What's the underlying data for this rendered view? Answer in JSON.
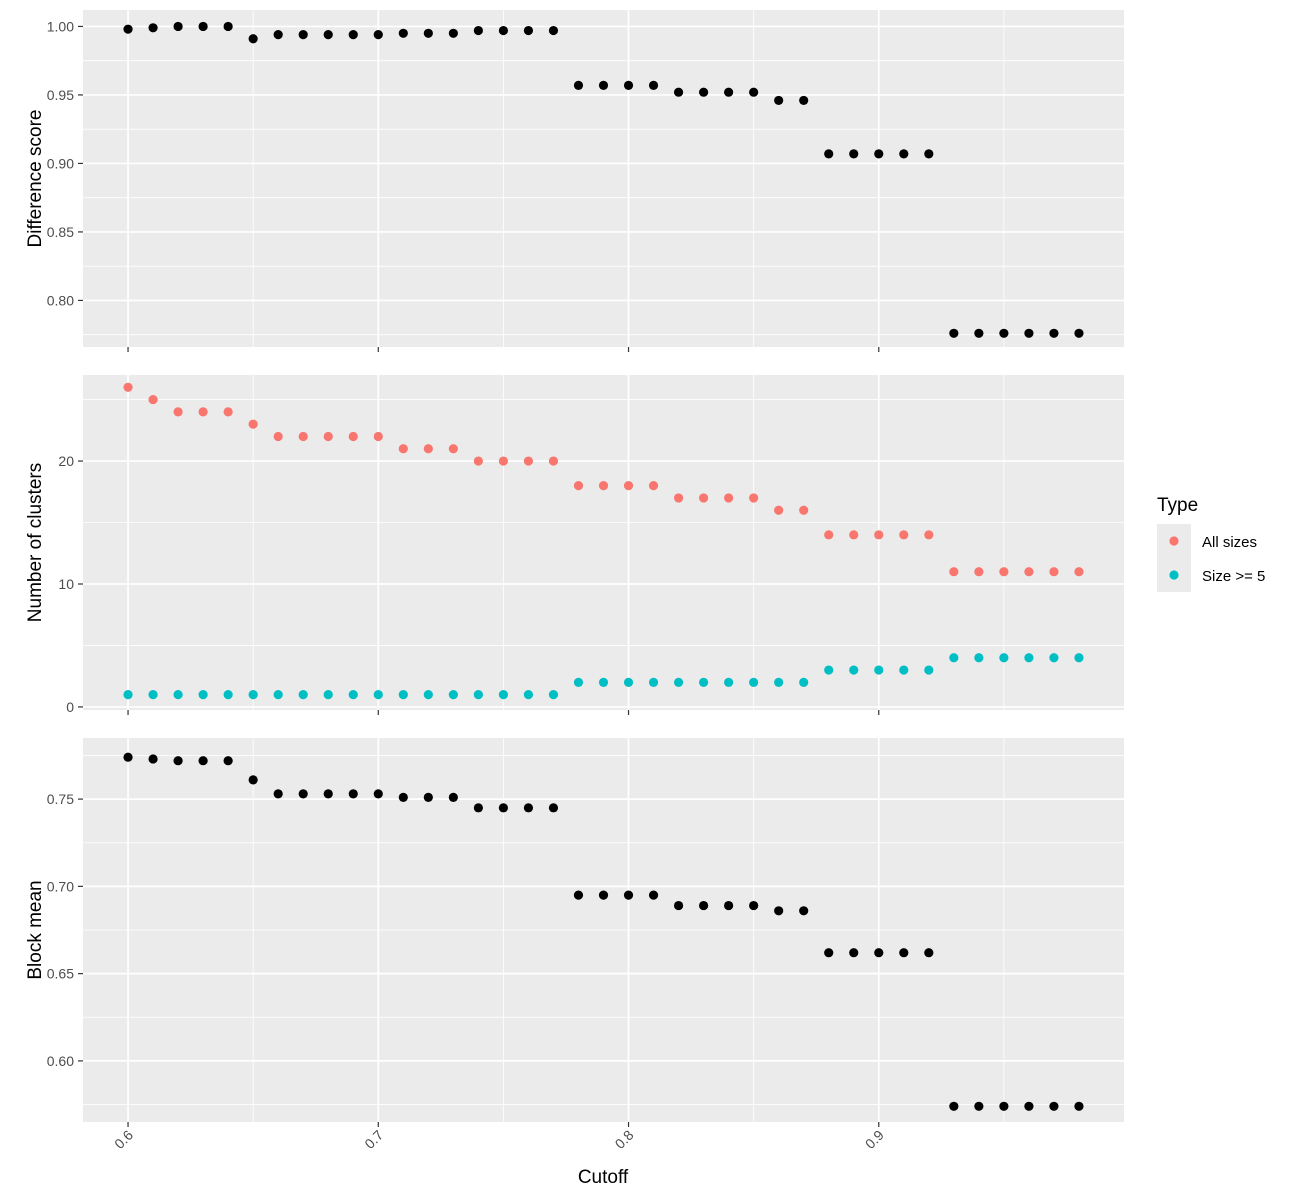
{
  "chart_data": {
    "type": "scatter",
    "x": [
      0.6,
      0.61,
      0.62,
      0.63,
      0.64,
      0.65,
      0.66,
      0.67,
      0.68,
      0.69,
      0.7,
      0.71,
      0.72,
      0.73,
      0.74,
      0.75,
      0.76,
      0.77,
      0.78,
      0.79,
      0.8,
      0.81,
      0.82,
      0.83,
      0.84,
      0.85,
      0.86,
      0.87,
      0.88,
      0.89,
      0.9,
      0.91,
      0.92,
      0.93,
      0.94,
      0.95,
      0.96,
      0.97,
      0.98
    ],
    "xlabel": "Cutoff",
    "xticks": [
      "0.6",
      "0.7",
      "0.8",
      "0.9"
    ],
    "xlim": [
      0.582,
      0.998
    ],
    "grid": true,
    "panels": [
      {
        "ylabel": "Difference score",
        "ylim": [
          0.766,
          1.012
        ],
        "yticks": [
          "0.80",
          "0.85",
          "0.90",
          "0.95",
          "1.00"
        ],
        "series": [
          {
            "values": [
              0.998,
              0.999,
              1.0,
              1.0,
              1.0,
              0.991,
              0.994,
              0.994,
              0.994,
              0.994,
              0.994,
              0.995,
              0.995,
              0.995,
              0.997,
              0.997,
              0.997,
              0.997,
              0.957,
              0.957,
              0.957,
              0.957,
              0.952,
              0.952,
              0.952,
              0.952,
              0.946,
              0.946,
              0.907,
              0.907,
              0.907,
              0.907,
              0.907,
              0.776,
              0.776,
              0.776,
              0.776,
              0.776,
              0.776
            ]
          }
        ]
      },
      {
        "ylabel": "Number of clusters",
        "ylim": [
          -0.25,
          27.0
        ],
        "yticks": [
          "0",
          "10",
          "20"
        ],
        "series": [
          {
            "name": "All sizes",
            "values": [
              26,
              25,
              24,
              24,
              24,
              23,
              22,
              22,
              22,
              22,
              22,
              21,
              21,
              21,
              20,
              20,
              20,
              20,
              18,
              18,
              18,
              18,
              17,
              17,
              17,
              17,
              16,
              16,
              14,
              14,
              14,
              14,
              14,
              11,
              11,
              11,
              11,
              11,
              11
            ]
          },
          {
            "name": "Size >= 5",
            "values": [
              1,
              1,
              1,
              1,
              1,
              1,
              1,
              1,
              1,
              1,
              1,
              1,
              1,
              1,
              1,
              1,
              1,
              1,
              2,
              2,
              2,
              2,
              2,
              2,
              2,
              2,
              2,
              2,
              3,
              3,
              3,
              3,
              3,
              4,
              4,
              4,
              4,
              4,
              4
            ]
          }
        ]
      },
      {
        "ylabel": "Block mean",
        "ylim": [
          0.565,
          0.785
        ],
        "yticks": [
          "0.60",
          "0.65",
          "0.70",
          "0.75"
        ],
        "series": [
          {
            "values": [
              0.774,
              0.773,
              0.772,
              0.772,
              0.772,
              0.761,
              0.753,
              0.753,
              0.753,
              0.753,
              0.753,
              0.751,
              0.751,
              0.751,
              0.745,
              0.745,
              0.745,
              0.745,
              0.695,
              0.695,
              0.695,
              0.695,
              0.689,
              0.689,
              0.689,
              0.689,
              0.686,
              0.686,
              0.662,
              0.662,
              0.662,
              0.662,
              0.662,
              0.574,
              0.574,
              0.574,
              0.574,
              0.574,
              0.574
            ]
          }
        ]
      }
    ],
    "legend": {
      "title": "Type",
      "placement": "right",
      "entries": [
        "All sizes",
        "Size >= 5"
      ]
    },
    "colors": {
      "panel_bg": "#ebebeb",
      "grid": "#ffffff",
      "single_series": "#000000",
      "All sizes": "#f8766d",
      "Size >= 5": "#00bfc4"
    }
  }
}
